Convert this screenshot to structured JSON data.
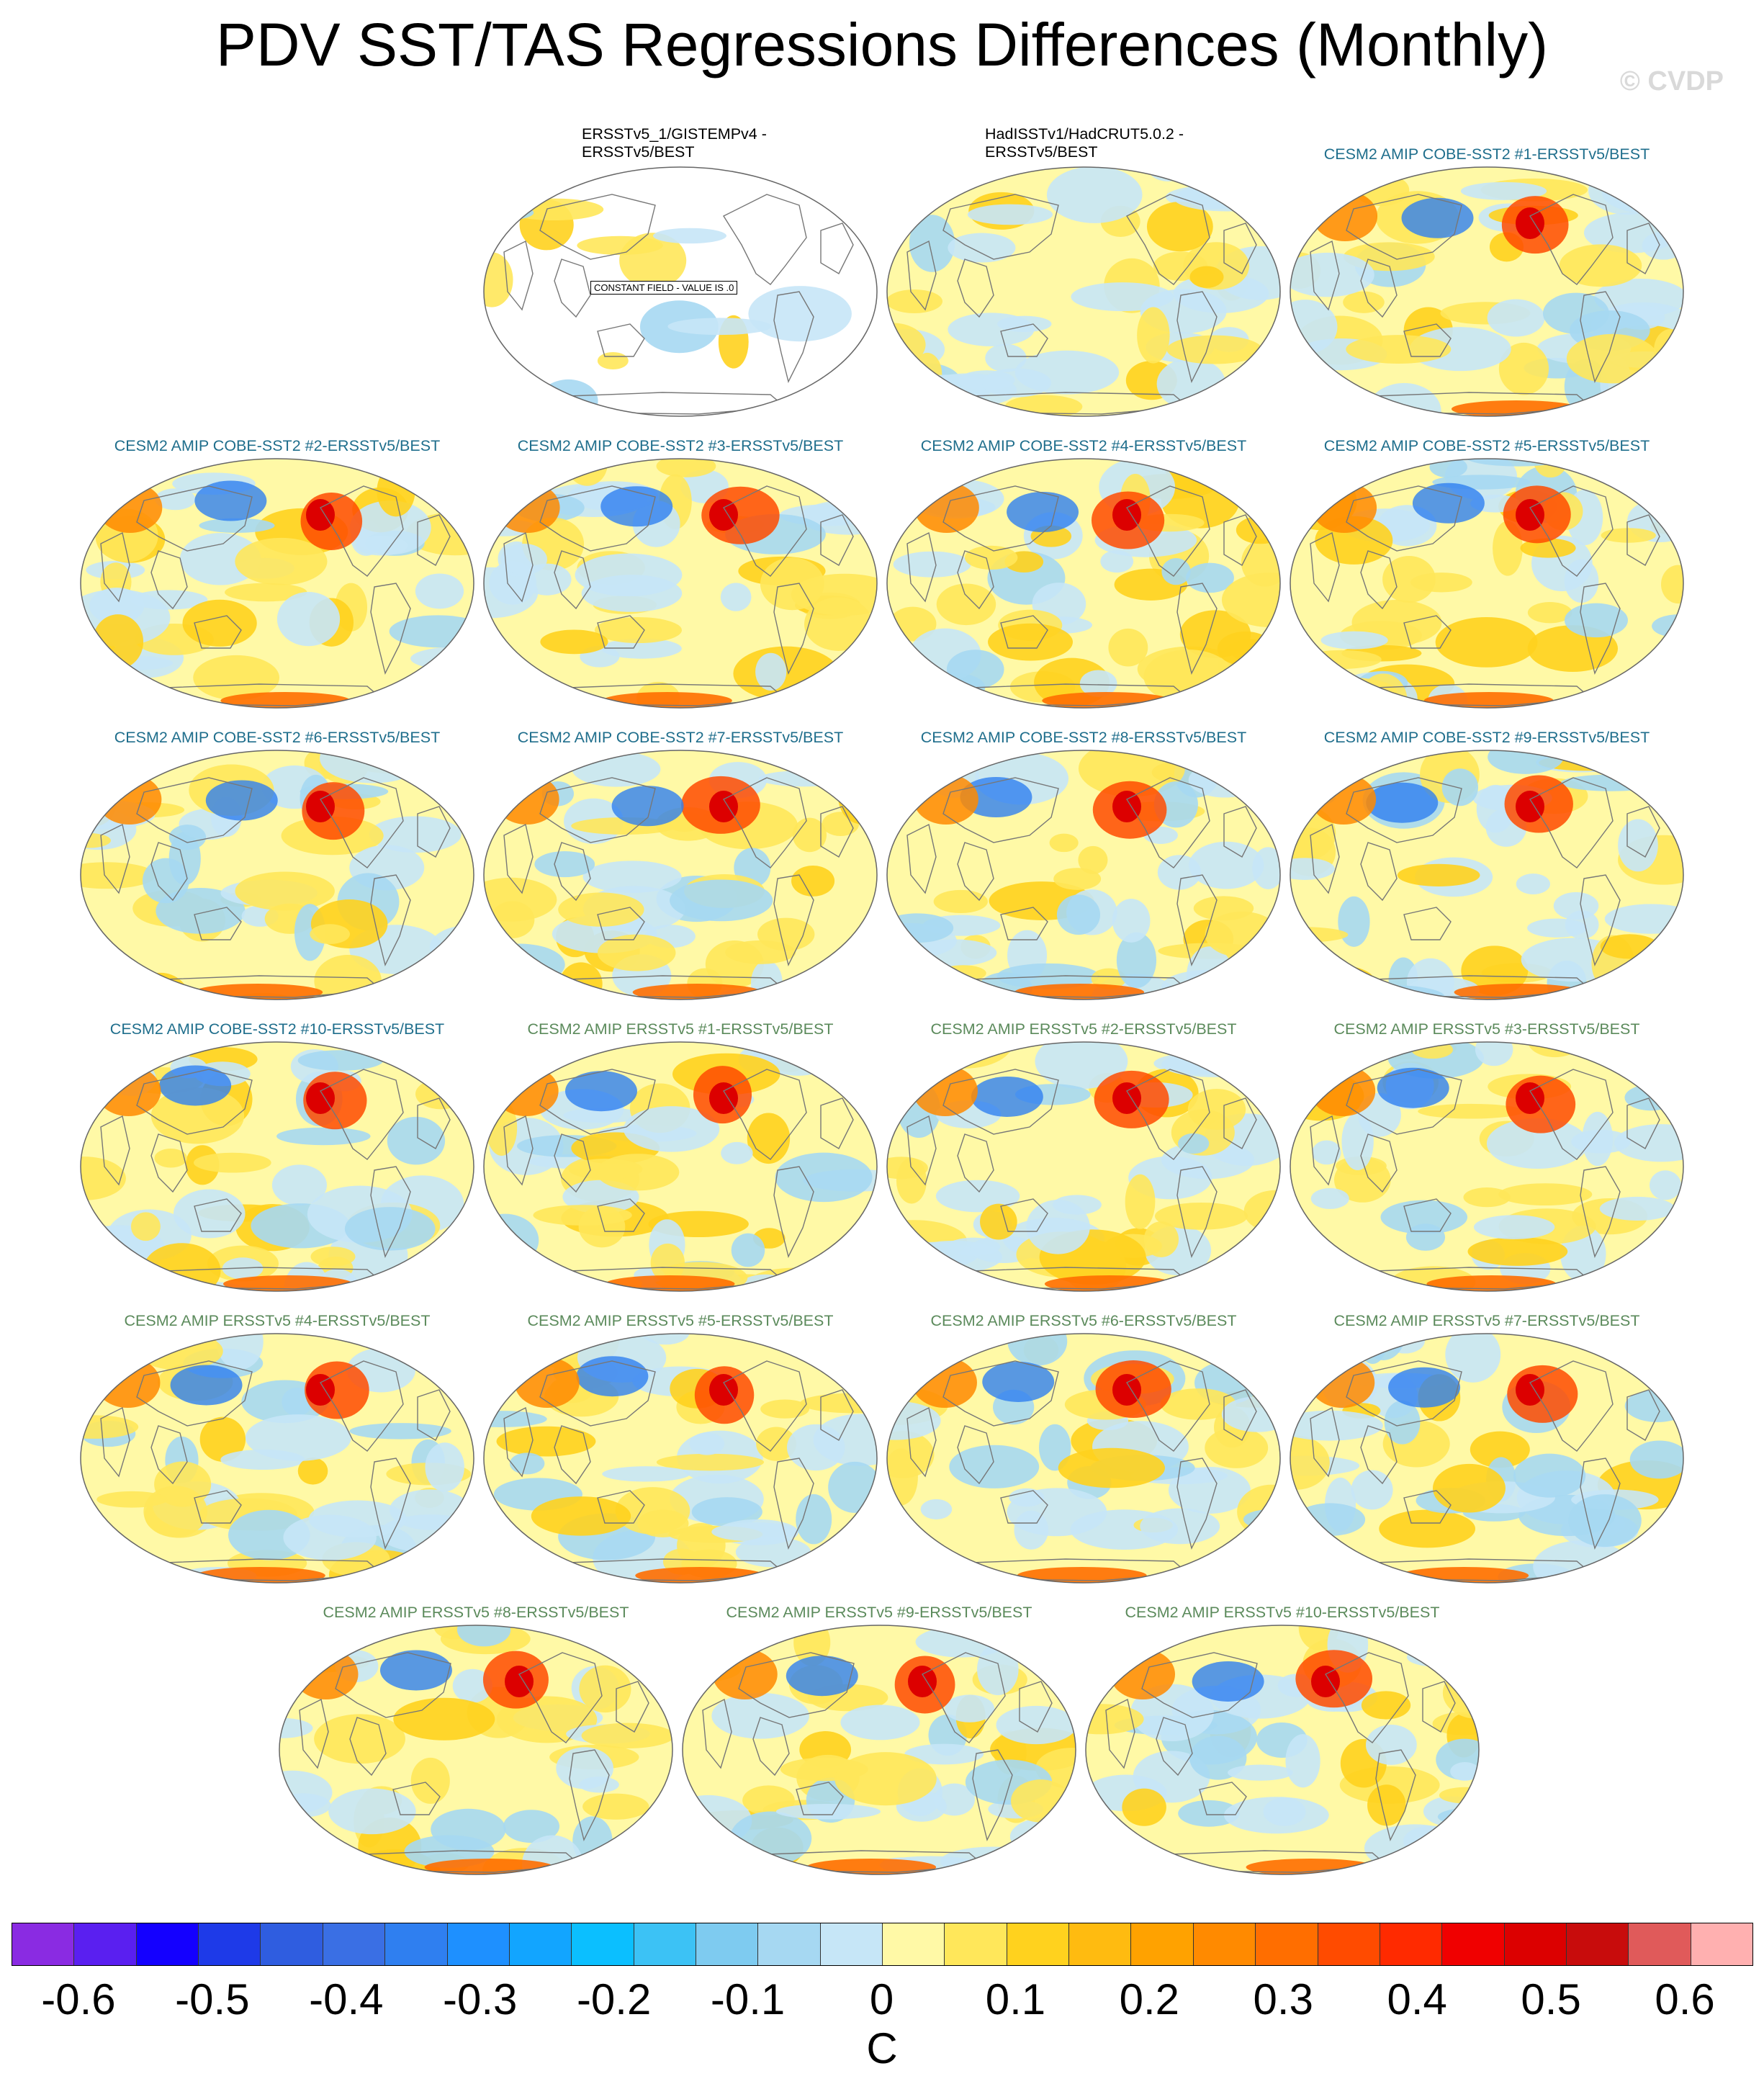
{
  "title": "PDV SST/TAS Regressions Differences (Monthly)",
  "watermark": "© CVDP",
  "colors": {
    "cobe_title": "#1f6e8c",
    "ersst_title": "#5b8a5b",
    "land_outline": "#777777"
  },
  "constant_field_label": "CONSTANT FIELD - VALUE IS .0",
  "panels": [
    {
      "title": "ERSSTv5_1/GISTEMPv4 -\nERSSTv5/BEST",
      "group": "obs",
      "constant": true
    },
    {
      "title": "HadISSTv1/HadCRUT5.0.2 -\nERSSTv5/BEST",
      "group": "obs",
      "constant": false
    },
    {
      "title": "CESM2 AMIP COBE-SST2 #1-ERSSTv5/BEST",
      "group": "cobe"
    },
    {
      "title": "CESM2 AMIP COBE-SST2 #2-ERSSTv5/BEST",
      "group": "cobe"
    },
    {
      "title": "CESM2 AMIP COBE-SST2 #3-ERSSTv5/BEST",
      "group": "cobe"
    },
    {
      "title": "CESM2 AMIP COBE-SST2 #4-ERSSTv5/BEST",
      "group": "cobe"
    },
    {
      "title": "CESM2 AMIP COBE-SST2 #5-ERSSTv5/BEST",
      "group": "cobe"
    },
    {
      "title": "CESM2 AMIP COBE-SST2 #6-ERSSTv5/BEST",
      "group": "cobe"
    },
    {
      "title": "CESM2 AMIP COBE-SST2 #7-ERSSTv5/BEST",
      "group": "cobe"
    },
    {
      "title": "CESM2 AMIP COBE-SST2 #8-ERSSTv5/BEST",
      "group": "cobe"
    },
    {
      "title": "CESM2 AMIP COBE-SST2 #9-ERSSTv5/BEST",
      "group": "cobe"
    },
    {
      "title": "CESM2 AMIP COBE-SST2 #10-ERSSTv5/BEST",
      "group": "cobe"
    },
    {
      "title": "CESM2 AMIP ERSSTv5 #1-ERSSTv5/BEST",
      "group": "ersst"
    },
    {
      "title": "CESM2 AMIP ERSSTv5 #2-ERSSTv5/BEST",
      "group": "ersst"
    },
    {
      "title": "CESM2 AMIP ERSSTv5 #3-ERSSTv5/BEST",
      "group": "ersst"
    },
    {
      "title": "CESM2 AMIP ERSSTv5 #4-ERSSTv5/BEST",
      "group": "ersst"
    },
    {
      "title": "CESM2 AMIP ERSSTv5 #5-ERSSTv5/BEST",
      "group": "ersst"
    },
    {
      "title": "CESM2 AMIP ERSSTv5 #6-ERSSTv5/BEST",
      "group": "ersst"
    },
    {
      "title": "CESM2 AMIP ERSSTv5 #7-ERSSTv5/BEST",
      "group": "ersst"
    },
    {
      "title": "CESM2 AMIP ERSSTv5 #8-ERSSTv5/BEST",
      "group": "ersst"
    },
    {
      "title": "CESM2 AMIP ERSSTv5 #9-ERSSTv5/BEST",
      "group": "ersst"
    },
    {
      "title": "CESM2 AMIP ERSSTv5 #10-ERSSTv5/BEST",
      "group": "ersst"
    }
  ],
  "chart_data": {
    "type": "heatmap",
    "title": "PDV SST/TAS Regressions Differences (Monthly)",
    "colorbar": {
      "unit": "C",
      "tick_labels": [
        "-0.6",
        "-0.5",
        "-0.4",
        "-0.3",
        "-0.2",
        "-0.1",
        "0",
        "0.1",
        "0.2",
        "0.3",
        "0.4",
        "0.5",
        "0.6"
      ],
      "tick_values": [
        -0.6,
        -0.5,
        -0.4,
        -0.3,
        -0.2,
        -0.1,
        0,
        0.1,
        0.2,
        0.3,
        0.4,
        0.5,
        0.6
      ],
      "range": [
        -0.65,
        0.65
      ],
      "colors": [
        "#8a2be2",
        "#5a1ff0",
        "#1400ff",
        "#1e3ae8",
        "#2f5de0",
        "#3a6fe4",
        "#2f7ff0",
        "#1e90ff",
        "#12a5ff",
        "#0bbfff",
        "#3cc2f5",
        "#7ecbf0",
        "#a6d8f2",
        "#c6e6f7",
        "#fff9a6",
        "#ffe75a",
        "#ffd21e",
        "#ffbb10",
        "#ffa200",
        "#ff8a00",
        "#ff6e00",
        "#ff4b00",
        "#ff2a00",
        "#f00000",
        "#dc0000",
        "#c80c0c",
        "#e05a5a",
        "#ffb0b0"
      ]
    }
  }
}
